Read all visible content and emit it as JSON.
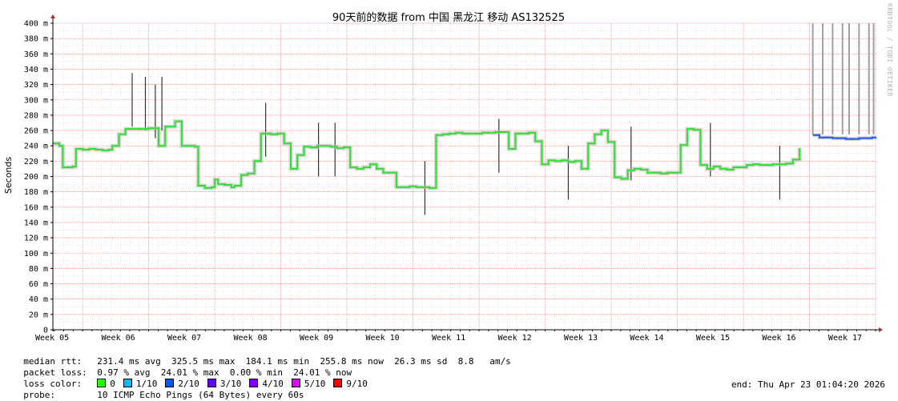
{
  "chart_data": {
    "type": "line",
    "title": "90天前的数据 from 中国 黑龙江 移动 AS132525",
    "ylabel": "Seconds",
    "watermark": "RRDTOOL / TOBI OETIKER",
    "ylim": [
      0,
      400
    ],
    "ytick_values": [
      0,
      20,
      40,
      60,
      80,
      100,
      120,
      140,
      160,
      180,
      200,
      220,
      240,
      260,
      280,
      300,
      320,
      340,
      360,
      380,
      400
    ],
    "ytick_labels": [
      "0",
      "20 m",
      "40 m",
      "60 m",
      "80 m",
      "100 m",
      "120 m",
      "140 m",
      "160 m",
      "180 m",
      "200 m",
      "220 m",
      "240 m",
      "260 m",
      "280 m",
      "300 m",
      "320 m",
      "340 m",
      "360 m",
      "380 m",
      "400 m"
    ],
    "xlim": [
      4.55,
      17.0
    ],
    "xticks": [
      {
        "value": 5,
        "label": "Week 05"
      },
      {
        "value": 6,
        "label": "Week 06"
      },
      {
        "value": 7,
        "label": "Week 07"
      },
      {
        "value": 8,
        "label": "Week 08"
      },
      {
        "value": 9,
        "label": "Week 09"
      },
      {
        "value": 10,
        "label": "Week 10"
      },
      {
        "value": 11,
        "label": "Week 11"
      },
      {
        "value": 12,
        "label": "Week 12"
      },
      {
        "value": 13,
        "label": "Week 13"
      },
      {
        "value": 14,
        "label": "Week 14"
      },
      {
        "value": 15,
        "label": "Week 15"
      },
      {
        "value": 16,
        "label": "Week 16"
      },
      {
        "value": 17,
        "label": "Week 17"
      }
    ],
    "series": [
      {
        "color": "#33dd33",
        "x": [
          4.55,
          4.65,
          4.7,
          4.85,
          4.9,
          5.0,
          5.1,
          5.2,
          5.3,
          5.4,
          5.45,
          5.55,
          5.65,
          5.85,
          6.0,
          6.05,
          6.15,
          6.25,
          6.4,
          6.5,
          6.6,
          6.7,
          6.75,
          6.85,
          6.95,
          7.0,
          7.05,
          7.15,
          7.25,
          7.3,
          7.4,
          7.5,
          7.6,
          7.7,
          7.75,
          7.85,
          7.95,
          8.05,
          8.15,
          8.25,
          8.35,
          8.45,
          8.55,
          8.65,
          8.75,
          8.85,
          8.95,
          9.05,
          9.15,
          9.25,
          9.35,
          9.45,
          9.55,
          9.65,
          9.75,
          9.85,
          9.95,
          10.05,
          10.15,
          10.25,
          10.35,
          10.45,
          10.55,
          10.65,
          10.75,
          10.85,
          10.95,
          11.05,
          11.15,
          11.25,
          11.35,
          11.45,
          11.55,
          11.65,
          11.75,
          11.85,
          11.95,
          12.05,
          12.15,
          12.25,
          12.35,
          12.45,
          12.55,
          12.65,
          12.75,
          12.85,
          12.95,
          13.05,
          13.15,
          13.25,
          13.35,
          13.45,
          13.55,
          13.65,
          13.75,
          13.85,
          13.95,
          14.05,
          14.15,
          14.25,
          14.35,
          14.45,
          14.55,
          14.65,
          14.75,
          14.85,
          14.95,
          15.05,
          15.15,
          15.25,
          15.35,
          15.45,
          15.55,
          15.65,
          15.75,
          15.85
        ],
        "y": [
          243,
          240,
          212,
          213,
          236,
          235,
          236,
          235,
          234,
          235,
          240,
          255,
          262,
          262,
          263,
          263,
          240,
          265,
          272,
          240,
          240,
          239,
          188,
          185,
          186,
          196,
          190,
          189,
          186,
          188,
          202,
          204,
          220,
          256,
          256,
          255,
          256,
          243,
          210,
          228,
          239,
          238,
          240,
          240,
          239,
          237,
          238,
          212,
          210,
          212,
          216,
          210,
          205,
          205,
          186,
          186,
          187,
          186,
          186,
          185,
          254,
          255,
          256,
          257,
          256,
          256,
          256,
          257,
          257,
          258,
          258,
          236,
          256,
          256,
          257,
          246,
          216,
          221,
          220,
          221,
          219,
          220,
          210,
          243,
          255,
          260,
          245,
          199,
          197,
          208,
          210,
          209,
          205,
          205,
          204,
          205,
          205,
          241,
          262,
          261,
          215,
          210,
          213,
          210,
          209,
          212,
          212,
          215,
          216,
          215,
          215,
          216,
          216,
          217,
          222,
          237
        ]
      },
      {
        "color": "#1f55e0",
        "x": [
          16.05,
          16.15,
          16.25,
          16.35,
          16.45,
          16.55,
          16.65,
          16.75,
          16.85,
          16.95,
          17.0
        ],
        "y": [
          254,
          251,
          251,
          250,
          250,
          249,
          249,
          250,
          250,
          251,
          252
        ]
      }
    ],
    "rtt_spikes": [
      {
        "x": 5.75,
        "y": 335
      },
      {
        "x": 5.95,
        "y": 330
      },
      {
        "x": 6.1,
        "y": 320
      },
      {
        "x": 6.2,
        "y": 330
      },
      {
        "x": 7.77,
        "y": 296
      },
      {
        "x": 8.57,
        "y": 270
      },
      {
        "x": 8.82,
        "y": 270
      },
      {
        "x": 10.18,
        "y": 220
      },
      {
        "x": 11.3,
        "y": 275
      },
      {
        "x": 12.35,
        "y": 240
      },
      {
        "x": 13.3,
        "y": 265
      },
      {
        "x": 14.5,
        "y": 270
      },
      {
        "x": 15.55,
        "y": 240
      }
    ],
    "loss_markers_x": [
      16.05,
      16.2,
      16.35,
      16.5,
      16.6,
      16.75,
      16.9,
      16.97
    ]
  },
  "legend": {
    "median_rtt_label": "median rtt:",
    "median_rtt_values": "231.4 ms avg  325.5 ms max  184.1 ms min  255.8 ms now  26.3 ms sd  8.8   am/s",
    "packet_loss_label": "packet loss:",
    "packet_loss_values": "0.97 % avg  24.01 % max  0.00 % min  24.01 % now",
    "loss_color_label": "loss color:",
    "loss_colors": [
      {
        "label": "0",
        "color": "#26ff00"
      },
      {
        "label": "1/10",
        "color": "#00b8ff"
      },
      {
        "label": "2/10",
        "color": "#0059ff"
      },
      {
        "label": "3/10",
        "color": "#5e00ff"
      },
      {
        "label": "4/10",
        "color": "#7e00ff"
      },
      {
        "label": "5/10",
        "color": "#dd00ff"
      },
      {
        "label": "9/10",
        "color": "#ff0000"
      }
    ],
    "probe_label": "probe:",
    "probe_value": "10 ICMP Echo Pings (64 Bytes) every 60s",
    "end_text": "end: Thu Apr 23 01:04:20 2026"
  }
}
